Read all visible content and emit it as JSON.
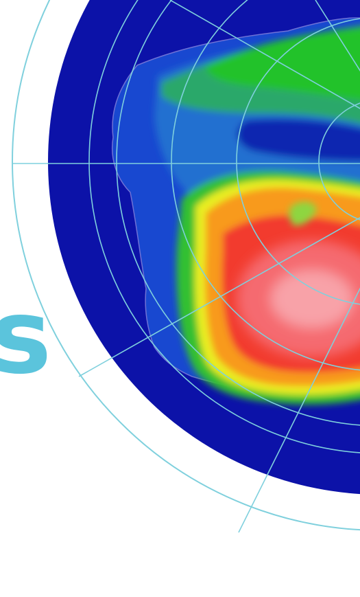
{
  "figure": {
    "kind": "polar stereographic map",
    "projection": "south-polar",
    "colors": {
      "background": "#ffffff",
      "ocean": "#0c12a8",
      "graticule": "#7fd0dd",
      "banner_text": "#5bc4dc"
    },
    "palette_low_to_high": [
      "#0c12a8",
      "#1a5ad8",
      "#2a9a6a",
      "#22c020",
      "#e8ef22",
      "#f89018",
      "#f23f2f",
      "#f58f98"
    ]
  },
  "banner": {
    "text": "s"
  }
}
